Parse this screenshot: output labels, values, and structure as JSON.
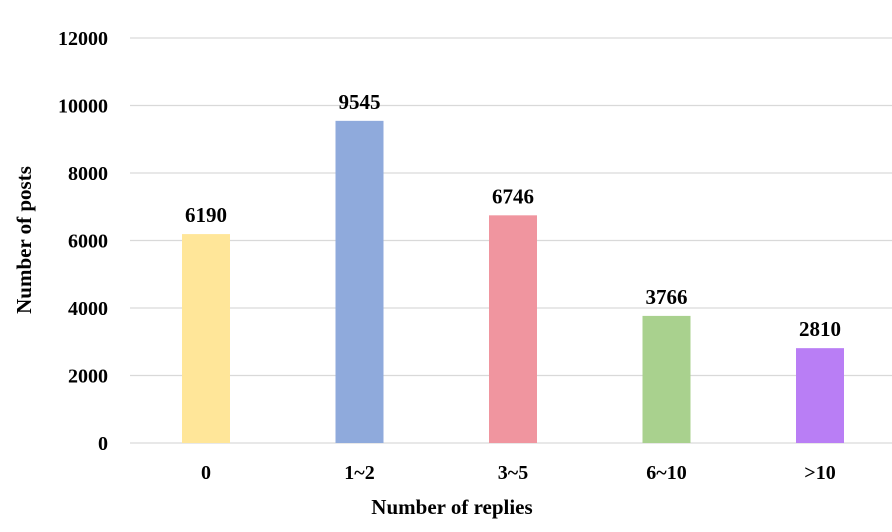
{
  "chart_data": {
    "type": "bar",
    "categories": [
      "0",
      "1~2",
      "3~5",
      "6~10",
      ">10"
    ],
    "values": [
      6190,
      9545,
      6746,
      3766,
      2810
    ],
    "data_labels": [
      "6190",
      "9545",
      "6746",
      "3766",
      "2810"
    ],
    "bar_colors": [
      "#ffe699",
      "#8faadc",
      "#f0959f",
      "#a9d18e",
      "#b97ef5"
    ],
    "title": "",
    "xlabel": "Number of replies",
    "ylabel": "Number of posts",
    "ylim": [
      0,
      12000
    ],
    "yticks": [
      0,
      2000,
      4000,
      6000,
      8000,
      10000,
      12000
    ],
    "ytick_labels": [
      "0",
      "2000",
      "4000",
      "6000",
      "8000",
      "10000",
      "12000"
    ],
    "grid": true,
    "legend": "none"
  }
}
